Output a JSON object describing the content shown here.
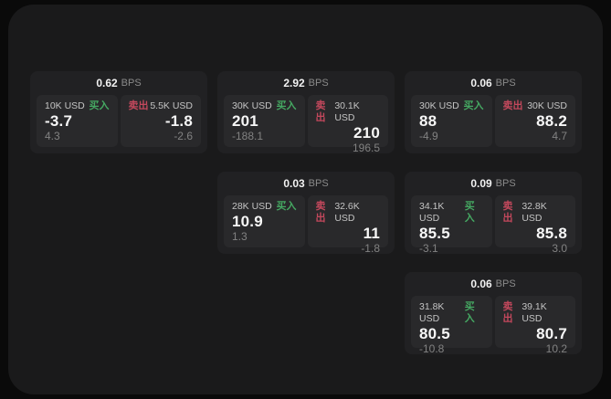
{
  "page": {
    "background": "#0a0a0a",
    "panel_background": "#1a1a1b",
    "buy_color": "#45a862",
    "sell_color": "#c3485c",
    "unit_label": "BPS",
    "buy_label": "买入",
    "sell_label": "卖出"
  },
  "cards": [
    {
      "spread": "0.62",
      "unit": "BPS",
      "buy": {
        "amount": "10K USD",
        "side_label": "买入",
        "price": "-3.7",
        "secondary": "4.3"
      },
      "sell": {
        "amount": "5.5K USD",
        "side_label": "卖出",
        "price": "-1.8",
        "secondary": "-2.6"
      }
    },
    {
      "spread": "2.92",
      "unit": "BPS",
      "buy": {
        "amount": "30K USD",
        "side_label": "买入",
        "price": "201",
        "secondary": "-188.1"
      },
      "sell": {
        "amount": "30.1K USD",
        "side_label": "卖出",
        "price": "210",
        "secondary": "196.5"
      }
    },
    {
      "spread": "0.06",
      "unit": "BPS",
      "buy": {
        "amount": "30K USD",
        "side_label": "买入",
        "price": "88",
        "secondary": "-4.9"
      },
      "sell": {
        "amount": "30K USD",
        "side_label": "卖出",
        "price": "88.2",
        "secondary": "4.7"
      }
    },
    {
      "spread": "0.03",
      "unit": "BPS",
      "buy": {
        "amount": "28K USD",
        "side_label": "买入",
        "price": "10.9",
        "secondary": "1.3"
      },
      "sell": {
        "amount": "32.6K USD",
        "side_label": "卖出",
        "price": "11",
        "secondary": "-1.8"
      }
    },
    {
      "spread": "0.09",
      "unit": "BPS",
      "buy": {
        "amount": "34.1K USD",
        "side_label": "买入",
        "price": "85.5",
        "secondary": "-3.1"
      },
      "sell": {
        "amount": "32.8K USD",
        "side_label": "卖出",
        "price": "85.8",
        "secondary": "3.0"
      }
    },
    {
      "spread": "0.06",
      "unit": "BPS",
      "buy": {
        "amount": "31.8K USD",
        "side_label": "买入",
        "price": "80.5",
        "secondary": "-10.8"
      },
      "sell": {
        "amount": "39.1K USD",
        "side_label": "卖出",
        "price": "80.7",
        "secondary": "10.2"
      }
    }
  ]
}
